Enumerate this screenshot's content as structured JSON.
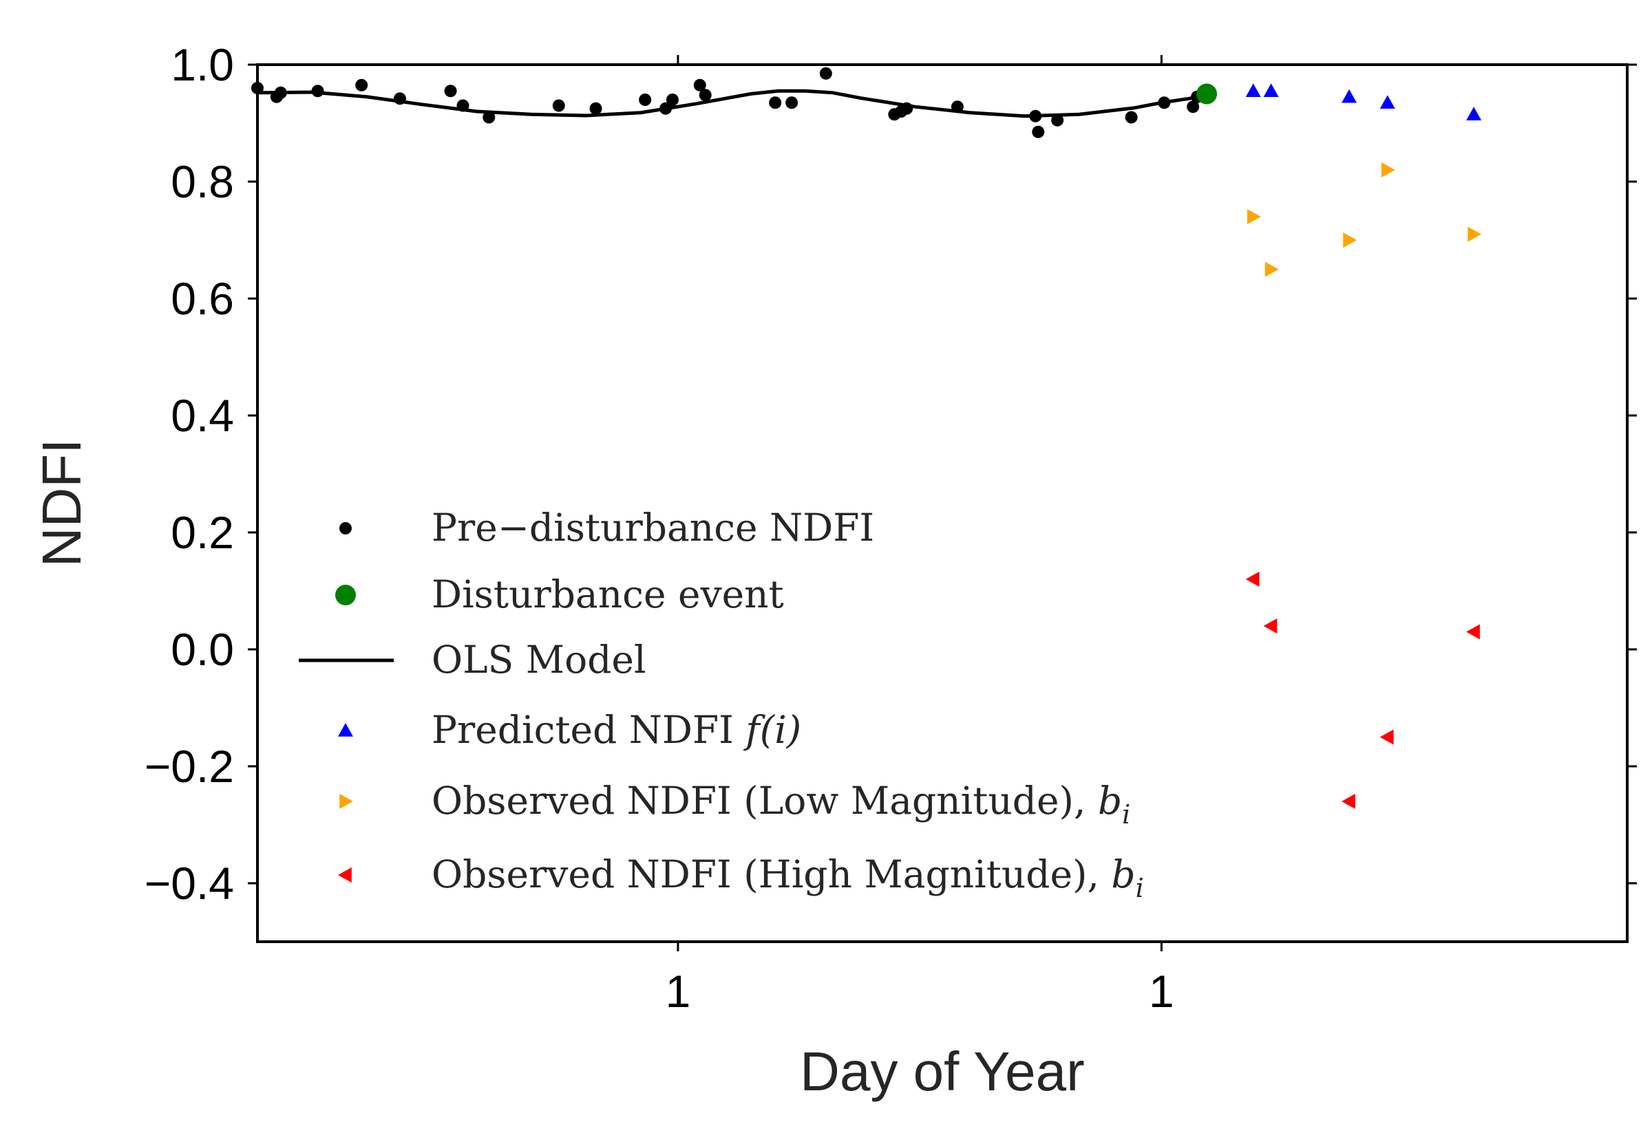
{
  "chart_data": {
    "type": "scatter",
    "xlabel": "Day of Year",
    "ylabel": "NDFI",
    "ylim": [
      -0.5,
      1.0
    ],
    "yticks": [
      "1.0",
      "0.8",
      "0.6",
      "0.4",
      "0.2",
      "0.0",
      "−0.2",
      "−0.4"
    ],
    "yticks_values": [
      1.0,
      0.8,
      0.6,
      0.4,
      0.2,
      0.0,
      -0.2,
      -0.4
    ],
    "xticks": [
      "1",
      "1"
    ],
    "xticks_at_fraction": [
      0.307,
      0.66
    ],
    "grid": false,
    "legend_position": "lower-left",
    "series": [
      {
        "name": "Pre−disturbance NDFI",
        "kind": "points",
        "color": "#000000",
        "x": [
          0.0,
          0.014,
          0.017,
          0.044,
          0.076,
          0.104,
          0.141,
          0.15,
          0.169,
          0.22,
          0.247,
          0.283,
          0.298,
          0.303,
          0.323,
          0.327,
          0.378,
          0.39,
          0.415,
          0.465,
          0.47,
          0.474,
          0.511,
          0.568,
          0.57,
          0.584,
          0.638,
          0.662,
          0.683,
          0.686
        ],
        "y": [
          0.96,
          0.945,
          0.952,
          0.955,
          0.965,
          0.942,
          0.955,
          0.93,
          0.91,
          0.93,
          0.925,
          0.94,
          0.925,
          0.94,
          0.965,
          0.948,
          0.935,
          0.935,
          0.985,
          0.915,
          0.92,
          0.925,
          0.928,
          0.912,
          0.885,
          0.905,
          0.91,
          0.935,
          0.928,
          0.945
        ]
      },
      {
        "name": "Disturbance event",
        "kind": "points",
        "color": "#008000",
        "x": [
          0.693
        ],
        "y": [
          0.95
        ]
      },
      {
        "name": "OLS Model",
        "kind": "line",
        "color": "#000000",
        "x": [
          0.0,
          0.04,
          0.08,
          0.12,
          0.16,
          0.2,
          0.24,
          0.28,
          0.32,
          0.36,
          0.38,
          0.4,
          0.42,
          0.44,
          0.48,
          0.52,
          0.56,
          0.6,
          0.64,
          0.66,
          0.68,
          0.693
        ],
        "y": [
          0.952,
          0.953,
          0.945,
          0.932,
          0.92,
          0.915,
          0.913,
          0.918,
          0.933,
          0.95,
          0.955,
          0.955,
          0.952,
          0.943,
          0.928,
          0.918,
          0.912,
          0.915,
          0.926,
          0.935,
          0.942,
          0.948
        ]
      },
      {
        "name": "Predicted NDFI f(i)",
        "legend_base": "Predicted NDFI ",
        "legend_math": "f(i)",
        "kind": "triangle-up",
        "color": "#0000ff",
        "x": [
          0.727,
          0.74,
          0.797,
          0.825,
          0.888
        ],
        "y": [
          0.955,
          0.955,
          0.945,
          0.935,
          0.915
        ]
      },
      {
        "name": "Observed NDFI (Low Magnitude), b_i",
        "legend_base": "Observed NDFI (Low Magnitude), ",
        "legend_math": "b",
        "legend_sub": "i",
        "kind": "triangle-right",
        "color": "#ffa500",
        "x": [
          0.727,
          0.74,
          0.797,
          0.825,
          0.888
        ],
        "y": [
          0.74,
          0.65,
          0.7,
          0.82,
          0.71
        ]
      },
      {
        "name": "Observed NDFI (High Magnitude), b_i",
        "legend_base": "Observed NDFI (High Magnitude), ",
        "legend_math": "b",
        "legend_sub": "i",
        "kind": "triangle-left",
        "color": "#ff0000",
        "x": [
          0.727,
          0.74,
          0.797,
          0.825,
          0.888
        ],
        "y": [
          0.12,
          0.04,
          -0.26,
          -0.15,
          0.03
        ]
      }
    ]
  }
}
